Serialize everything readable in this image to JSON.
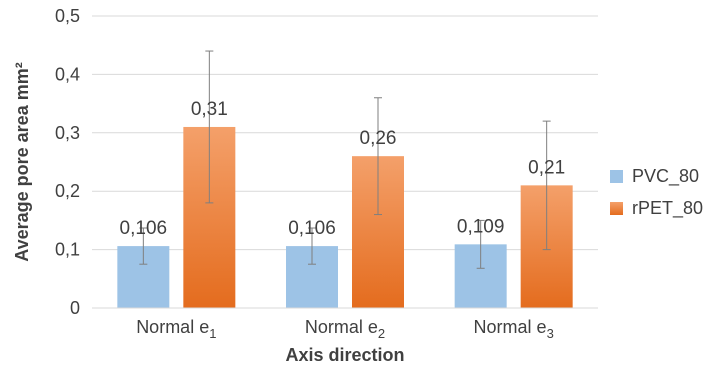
{
  "chart_data": {
    "type": "bar",
    "title": "",
    "xlabel": "Axis direction",
    "ylabel": "Average pore area mm²",
    "ylim": [
      0,
      0.5
    ],
    "yticks": [
      "0",
      "0,1",
      "0,2",
      "0,3",
      "0,4",
      "0,5"
    ],
    "ytick_values": [
      0,
      0.1,
      0.2,
      0.3,
      0.4,
      0.5
    ],
    "categories": [
      {
        "base": "Normal e",
        "sub": "1"
      },
      {
        "base": "Normal e",
        "sub": "2"
      },
      {
        "base": "Normal e",
        "sub": "3"
      }
    ],
    "series": [
      {
        "name": "PVC_80",
        "color": "#9dc3e6",
        "values": [
          0.106,
          0.106,
          0.109
        ],
        "labels": [
          "0,106",
          "0,106",
          "0,109"
        ],
        "error_low": [
          0.075,
          0.075,
          0.068
        ],
        "error_high": [
          0.137,
          0.137,
          0.15
        ]
      },
      {
        "name": "rPET_80",
        "color": "#ed7d31",
        "values": [
          0.31,
          0.26,
          0.21
        ],
        "labels": [
          "0,31",
          "0,26",
          "0,21"
        ],
        "error_low": [
          0.18,
          0.16,
          0.1
        ],
        "error_high": [
          0.44,
          0.36,
          0.32
        ]
      }
    ],
    "grid": true,
    "legend_position": "right"
  }
}
